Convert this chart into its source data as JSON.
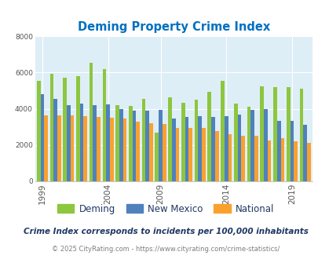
{
  "title": "Deming Property Crime Index",
  "subtitle": "Crime Index corresponds to incidents per 100,000 inhabitants",
  "footer": "© 2025 CityRating.com - https://www.cityrating.com/crime-statistics/",
  "years": [
    1999,
    2000,
    2001,
    2002,
    2003,
    2004,
    2005,
    2006,
    2007,
    2009,
    2010,
    2011,
    2012,
    2013,
    2014,
    2015,
    2016,
    2017,
    2018,
    2019,
    2020
  ],
  "deming": [
    5550,
    5950,
    5700,
    5800,
    6550,
    6200,
    4200,
    4150,
    4550,
    2700,
    4650,
    4350,
    4500,
    4950,
    5550,
    4300,
    4100,
    5250,
    5200,
    5200,
    5100
  ],
  "new_mexico": [
    4800,
    4550,
    4200,
    4300,
    4200,
    4250,
    4000,
    3900,
    3900,
    3950,
    3450,
    3550,
    3600,
    3550,
    3600,
    3700,
    3950,
    4000,
    3350,
    3350,
    3100
  ],
  "national": [
    3650,
    3650,
    3650,
    3600,
    3550,
    3500,
    3450,
    3300,
    3200,
    3150,
    2950,
    2950,
    2950,
    2750,
    2600,
    2500,
    2500,
    2250,
    2400,
    2200,
    2100
  ],
  "deming_color": "#8dc63f",
  "nm_color": "#4f81bd",
  "national_color": "#f9a12e",
  "bg_color": "#deeef6",
  "ylim": [
    0,
    8000
  ],
  "yticks": [
    0,
    2000,
    4000,
    6000,
    8000
  ],
  "title_color": "#0070c0",
  "subtitle_color": "#1f3864",
  "footer_color": "#7f7f7f",
  "tick_years": [
    1999,
    2004,
    2009,
    2014,
    2019
  ]
}
